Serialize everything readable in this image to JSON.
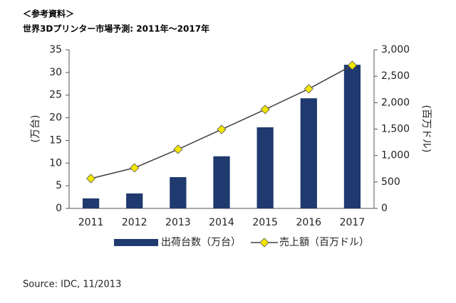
{
  "chart_data": {
    "type": "bar",
    "note": "＜参考資料＞",
    "title": "世界3Dプリンター市場予測: 2011年～2017年",
    "categories": [
      "2011",
      "2012",
      "2013",
      "2014",
      "2015",
      "2016",
      "2017"
    ],
    "series": [
      {
        "name": "出荷台数（万台）",
        "type": "bar",
        "axis": "y",
        "color": "#1f3a6e",
        "values": [
          2.2,
          3.3,
          6.9,
          11.5,
          17.9,
          24.3,
          31.7
        ]
      },
      {
        "name": "売上額（百万ドル）",
        "type": "line",
        "axis": "y2",
        "color": "#404040",
        "marker_color": "#f2e600",
        "values": [
          565,
          767,
          1117,
          1494,
          1871,
          2261,
          2705
        ]
      }
    ],
    "ylabel": "(万台)",
    "y2label": "(百万ドル)",
    "ylim": [
      0,
      35
    ],
    "yticks": [
      0,
      5,
      10,
      15,
      20,
      25,
      30,
      35
    ],
    "y2lim": [
      0,
      3000
    ],
    "y2ticks": [
      0,
      500,
      {
        "value": 1000,
        "label": "1,000"
      },
      {
        "value": 1500,
        "label": "1,500"
      },
      {
        "value": 2000,
        "label": "2,000"
      },
      {
        "value": 2500,
        "label": "2,500"
      },
      {
        "value": 3000,
        "label": "3,000"
      }
    ],
    "grid": false,
    "source": "Source: IDC, 11/2013"
  }
}
